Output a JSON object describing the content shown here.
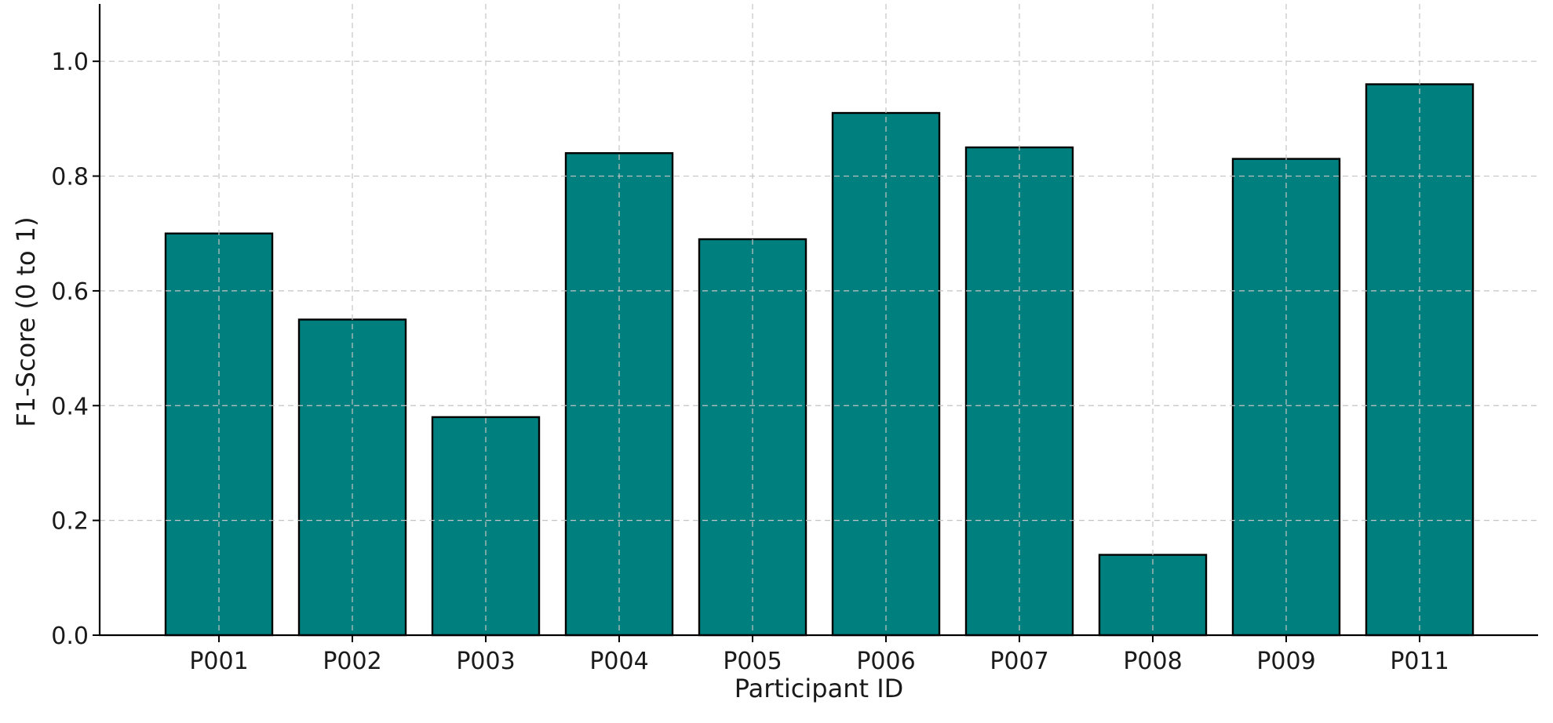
{
  "chart_data": {
    "type": "bar",
    "categories": [
      "P001",
      "P002",
      "P003",
      "P004",
      "P005",
      "P006",
      "P007",
      "P008",
      "P009",
      "P011"
    ],
    "values": [
      0.7,
      0.55,
      0.38,
      0.84,
      0.69,
      0.91,
      0.85,
      0.14,
      0.83,
      0.96
    ],
    "xlabel": "Participant ID",
    "ylabel": "F1-Score (0 to 1)",
    "ylim": [
      0,
      1.1
    ],
    "yticks": [
      0.0,
      0.2,
      0.4,
      0.6,
      0.8,
      1.0
    ],
    "ytick_labels": [
      "0.0",
      "0.2",
      "0.4",
      "0.6",
      "0.8",
      "1.0"
    ],
    "grid": true,
    "bar_color": "#007f7f",
    "edge_color": "#000000"
  }
}
